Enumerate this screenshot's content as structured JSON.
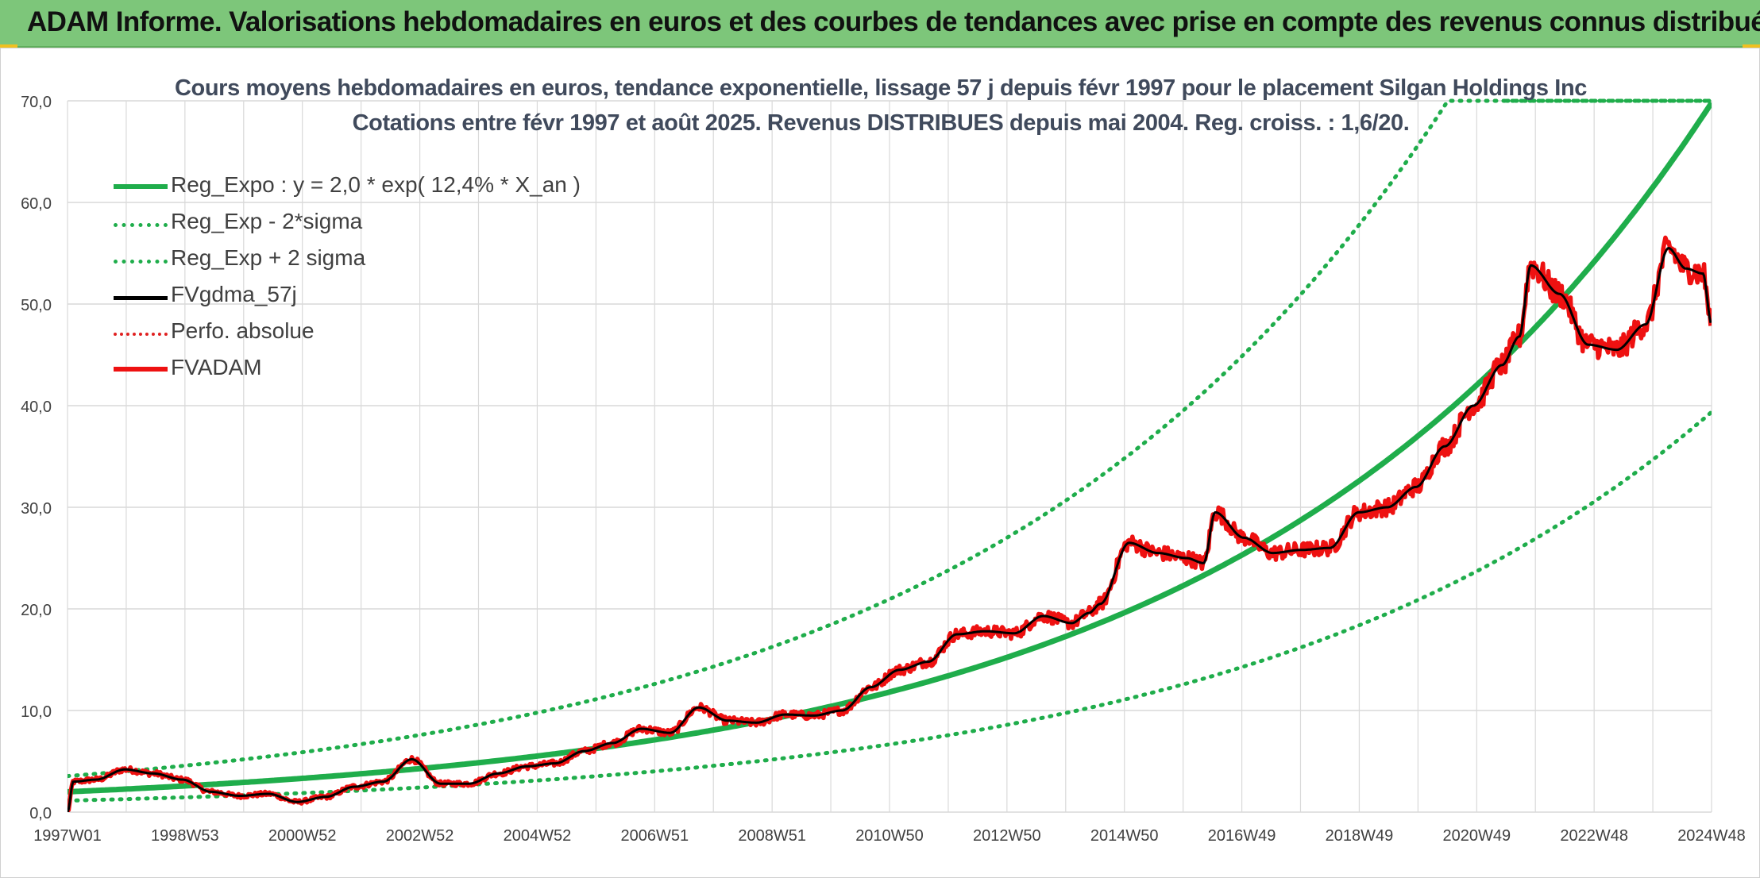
{
  "banner": {
    "title": "ADAM Informe. Valorisations hebdomadaires en euros et des courbes de tendances avec prise en compte des revenus connus distribués"
  },
  "colors": {
    "banner_bg": "#7dc67a",
    "regression": "#1fad4b",
    "sigma_bands": "#1fad4b",
    "smoothed": "#000000",
    "perfo_absolue": "#e02020",
    "fvadam": "#ee1111",
    "grid": "#d9d9d9"
  },
  "chart_data": {
    "type": "line",
    "title": "Cours moyens hebdomadaires en euros, tendance exponentielle, lissage 57 j depuis févr 1997 pour le placement Silgan Holdings Inc",
    "subtitle": "Cotations entre févr 1997 et août 2025. Revenus DISTRIBUES depuis mai 2004. Reg. croiss. : 1,6/20.",
    "x_tick_labels": [
      "1997W01",
      "1998W53",
      "2000W52",
      "2002W52",
      "2004W52",
      "2006W51",
      "2008W51",
      "2010W50",
      "2012W50",
      "2014W50",
      "2016W49",
      "2018W49",
      "2020W49",
      "2022W48",
      "2024W48"
    ],
    "x_range": [
      1997.0,
      2025.65
    ],
    "ylim": [
      0,
      70
    ],
    "y_ticks": [
      "0,0",
      "10,0",
      "20,0",
      "30,0",
      "40,0",
      "50,0",
      "60,0",
      "70,0"
    ],
    "y_tick_values": [
      0,
      10,
      20,
      30,
      40,
      50,
      60,
      70
    ],
    "grid": true,
    "legend_position": "top-left",
    "series": [
      {
        "name": "Reg_Expo : y = 2,0 * exp( 12,4% *  X_an )",
        "style": "solid-thick",
        "formula": {
          "a": 2.0,
          "rate": 0.124,
          "start_year": 1997.0
        }
      },
      {
        "name": "Reg_Exp - 2*sigma",
        "style": "dotted",
        "formula": {
          "a": 1.128,
          "rate": 0.124,
          "start_year": 1997.0
        }
      },
      {
        "name": "Reg_Exp + 2 sigma",
        "style": "dotted",
        "formula": {
          "a": 3.546,
          "rate": 0.124,
          "start_year": 1997.0
        }
      },
      {
        "name": "FVgdma_57j",
        "style": "solid"
      },
      {
        "name": "Perfo. absolue",
        "style": "dotted"
      },
      {
        "name": "FVADAM",
        "style": "solid-thick"
      }
    ],
    "price_points": {
      "x": [
        1997.0,
        1997.1,
        1997.5,
        1998.0,
        1998.5,
        1999.0,
        1999.5,
        2000.0,
        2000.5,
        2001.0,
        2001.5,
        2002.0,
        2002.5,
        2003.0,
        2003.5,
        2004.0,
        2004.5,
        2005.0,
        2005.5,
        2006.0,
        2006.5,
        2007.0,
        2007.5,
        2008.0,
        2008.5,
        2009.0,
        2009.5,
        2010.0,
        2010.5,
        2011.0,
        2011.5,
        2012.0,
        2012.5,
        2013.0,
        2013.5,
        2014.0,
        2014.5,
        2014.8,
        2015.0,
        2015.5,
        2016.0,
        2016.5,
        2016.8,
        2017.0,
        2017.5,
        2018.0,
        2018.5,
        2019.0,
        2019.5,
        2020.0,
        2020.5,
        2021.0,
        2021.5,
        2022.0,
        2022.3,
        2022.5,
        2023.0,
        2023.5,
        2024.0,
        2024.5,
        2024.9,
        2025.2,
        2025.5,
        2025.65
      ],
      "y": [
        0,
        3.0,
        3.2,
        4.2,
        3.8,
        3.2,
        2.0,
        1.6,
        1.8,
        1.0,
        1.5,
        2.5,
        3.0,
        5.2,
        2.8,
        2.8,
        3.8,
        4.5,
        4.8,
        6.0,
        6.8,
        8.2,
        7.8,
        10.3,
        9.0,
        8.8,
        9.6,
        9.5,
        10.0,
        12.3,
        14.0,
        14.8,
        17.5,
        17.8,
        17.6,
        19.3,
        18.6,
        19.6,
        20.5,
        26.5,
        25.5,
        25.0,
        24.5,
        29.5,
        27.0,
        25.5,
        25.8,
        26.0,
        29.5,
        30.0,
        32.0,
        36.0,
        40.0,
        44.0,
        46.8,
        53.8,
        51.0,
        46.0,
        45.5,
        48.0,
        55.5,
        53.5,
        53.0,
        48.0
      ]
    }
  }
}
